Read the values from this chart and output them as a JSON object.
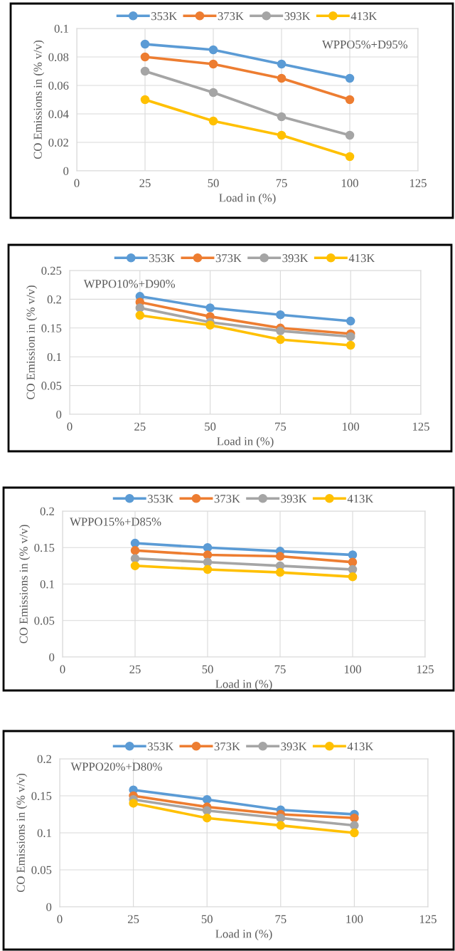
{
  "chart_data": [
    {
      "type": "line",
      "xlabel": "Load in (%)",
      "ylabel": "CO Emissions in (% v/v)",
      "annotations": [
        "WPPO5%+D95%"
      ],
      "x": [
        25,
        50,
        75,
        100
      ],
      "xlim": [
        0,
        125
      ],
      "xticks": [
        0,
        25,
        50,
        75,
        100,
        125
      ],
      "ylim": [
        0,
        0.1
      ],
      "yticks": [
        0,
        0.02,
        0.04,
        0.06,
        0.08,
        0.1
      ],
      "grid": true,
      "legend": "top",
      "marker": "circle",
      "line_style": "solid",
      "series": [
        {
          "name": "353K",
          "color": "#5b9bd5",
          "values": [
            0.089,
            0.085,
            0.075,
            0.065
          ]
        },
        {
          "name": "373K",
          "color": "#ed7d31",
          "values": [
            0.08,
            0.075,
            0.065,
            0.05
          ]
        },
        {
          "name": "393K",
          "color": "#a5a5a5",
          "values": [
            0.07,
            0.055,
            0.038,
            0.025
          ]
        },
        {
          "name": "413K",
          "color": "#ffc000",
          "values": [
            0.05,
            0.035,
            0.025,
            0.01
          ]
        }
      ]
    },
    {
      "type": "line",
      "xlabel": "Load in (%)",
      "ylabel": "CO Emission in (% v/v)",
      "annotations": [
        "WPPO10%+D90%"
      ],
      "x": [
        25,
        50,
        75,
        100
      ],
      "xlim": [
        0,
        125
      ],
      "xticks": [
        0,
        25,
        50,
        75,
        100,
        125
      ],
      "ylim": [
        0,
        0.25
      ],
      "yticks": [
        0,
        0.05,
        0.1,
        0.15,
        0.2,
        0.25
      ],
      "grid": true,
      "legend": "top",
      "marker": "circle",
      "line_style": "solid",
      "series": [
        {
          "name": "353K",
          "color": "#5b9bd5",
          "values": [
            0.205,
            0.185,
            0.173,
            0.162
          ]
        },
        {
          "name": "373K",
          "color": "#ed7d31",
          "values": [
            0.195,
            0.17,
            0.15,
            0.14
          ]
        },
        {
          "name": "393K",
          "color": "#a5a5a5",
          "values": [
            0.185,
            0.16,
            0.145,
            0.135
          ]
        },
        {
          "name": "413K",
          "color": "#ffc000",
          "values": [
            0.172,
            0.155,
            0.13,
            0.12
          ]
        }
      ]
    },
    {
      "type": "line",
      "xlabel": "Load in (%)",
      "ylabel": "CO Emissions in (% v/v)",
      "annotations": [
        "WPPO15%+D85%"
      ],
      "x": [
        25,
        50,
        75,
        100
      ],
      "xlim": [
        0,
        125
      ],
      "xticks": [
        0,
        25,
        50,
        75,
        100,
        125
      ],
      "ylim": [
        0,
        0.2
      ],
      "yticks": [
        0,
        0.05,
        0.1,
        0.15,
        0.2
      ],
      "grid": true,
      "legend": "top",
      "marker": "circle",
      "line_style": "solid",
      "series": [
        {
          "name": "353K",
          "color": "#5b9bd5",
          "values": [
            0.156,
            0.15,
            0.145,
            0.14
          ]
        },
        {
          "name": "373K",
          "color": "#ed7d31",
          "values": [
            0.146,
            0.14,
            0.138,
            0.13
          ]
        },
        {
          "name": "393K",
          "color": "#a5a5a5",
          "values": [
            0.135,
            0.13,
            0.125,
            0.12
          ]
        },
        {
          "name": "413K",
          "color": "#ffc000",
          "values": [
            0.125,
            0.12,
            0.116,
            0.11
          ]
        }
      ]
    },
    {
      "type": "line",
      "xlabel": "Load in (%)",
      "ylabel": "CO Emissions in (% v/v)",
      "annotations": [
        "WPPO20%+D80%"
      ],
      "x": [
        25,
        50,
        75,
        100
      ],
      "xlim": [
        0,
        125
      ],
      "xticks": [
        0,
        25,
        50,
        75,
        100,
        125
      ],
      "ylim": [
        0,
        0.2
      ],
      "yticks": [
        0,
        0.05,
        0.1,
        0.15,
        0.2
      ],
      "grid": true,
      "legend": "top",
      "marker": "circle",
      "line_style": "solid",
      "series": [
        {
          "name": "353K",
          "color": "#5b9bd5",
          "values": [
            0.158,
            0.145,
            0.131,
            0.125
          ]
        },
        {
          "name": "373K",
          "color": "#ed7d31",
          "values": [
            0.15,
            0.135,
            0.125,
            0.12
          ]
        },
        {
          "name": "393K",
          "color": "#a5a5a5",
          "values": [
            0.145,
            0.13,
            0.12,
            0.11
          ]
        },
        {
          "name": "413K",
          "color": "#ffc000",
          "values": [
            0.14,
            0.12,
            0.11,
            0.1
          ]
        }
      ]
    }
  ]
}
